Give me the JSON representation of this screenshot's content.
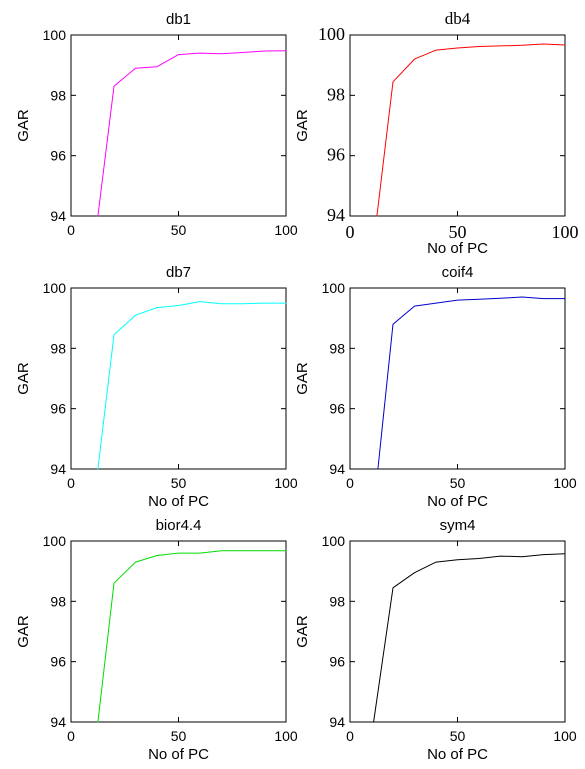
{
  "chart_data": [
    {
      "type": "line",
      "title": "db1",
      "xlabel": "",
      "ylabel": "GAR",
      "xlim": [
        0,
        100
      ],
      "ylim": [
        94,
        100
      ],
      "xticks": [
        "0",
        "50",
        "100"
      ],
      "yticks": [
        "94",
        "96",
        "98",
        "100"
      ],
      "color": "#ff00ff",
      "series": [
        {
          "x": [
            12.5,
            20,
            30,
            40,
            50,
            60,
            70,
            80,
            90,
            100
          ],
          "y": [
            94.0,
            98.3,
            98.9,
            98.95,
            99.35,
            99.4,
            99.38,
            99.42,
            99.47,
            99.48
          ]
        }
      ]
    },
    {
      "type": "line",
      "title": "db4",
      "xlabel": "No of PC",
      "ylabel": "GAR",
      "xlim": [
        0,
        100
      ],
      "ylim": [
        94,
        100
      ],
      "xticks": [
        "0",
        "50",
        "100"
      ],
      "yticks": [
        "94",
        "96",
        "98",
        "100"
      ],
      "color": "#ff0000",
      "series": [
        {
          "x": [
            12.5,
            20,
            30,
            40,
            50,
            60,
            70,
            80,
            90,
            100
          ],
          "y": [
            94.0,
            98.45,
            99.2,
            99.5,
            99.57,
            99.62,
            99.64,
            99.66,
            99.7,
            99.67
          ]
        }
      ]
    },
    {
      "type": "line",
      "title": "db7",
      "xlabel": "No of PC",
      "ylabel": "GAR",
      "xlim": [
        0,
        100
      ],
      "ylim": [
        94,
        100
      ],
      "xticks": [
        "0",
        "50",
        "100"
      ],
      "yticks": [
        "94",
        "96",
        "98",
        "100"
      ],
      "color": "#00ffff",
      "series": [
        {
          "x": [
            12.5,
            20,
            30,
            40,
            50,
            60,
            70,
            80,
            90,
            100
          ],
          "y": [
            94.0,
            98.45,
            99.1,
            99.35,
            99.42,
            99.55,
            99.48,
            99.48,
            99.5,
            99.5
          ]
        }
      ]
    },
    {
      "type": "line",
      "title": "coif4",
      "xlabel": "No of PC",
      "ylabel": "GAR",
      "xlim": [
        0,
        100
      ],
      "ylim": [
        94,
        100
      ],
      "xticks": [
        "0",
        "50",
        "100"
      ],
      "yticks": [
        "94",
        "96",
        "98",
        "100"
      ],
      "color": "#0000cc",
      "series": [
        {
          "x": [
            13,
            20,
            30,
            40,
            50,
            60,
            70,
            80,
            90,
            100
          ],
          "y": [
            94.0,
            98.8,
            99.4,
            99.5,
            99.6,
            99.63,
            99.66,
            99.7,
            99.65,
            99.65
          ]
        }
      ]
    },
    {
      "type": "line",
      "title": "bior4.4",
      "xlabel": "No of PC",
      "ylabel": "GAR",
      "xlim": [
        0,
        100
      ],
      "ylim": [
        94,
        100
      ],
      "xticks": [
        "0",
        "50",
        "100"
      ],
      "yticks": [
        "94",
        "96",
        "98",
        "100"
      ],
      "color": "#00dd00",
      "series": [
        {
          "x": [
            12.5,
            20,
            30,
            40,
            50,
            60,
            70,
            80,
            90,
            100
          ],
          "y": [
            94.0,
            98.6,
            99.3,
            99.52,
            99.6,
            99.6,
            99.68,
            99.68,
            99.68,
            99.68
          ]
        }
      ]
    },
    {
      "type": "line",
      "title": "sym4",
      "xlabel": "No of PC",
      "ylabel": "GAR",
      "xlim": [
        0,
        100
      ],
      "ylim": [
        94,
        100
      ],
      "xticks": [
        "0",
        "50",
        "100"
      ],
      "yticks": [
        "94",
        "96",
        "98",
        "100"
      ],
      "color": "#000000",
      "series": [
        {
          "x": [
            11,
            20,
            30,
            40,
            50,
            60,
            70,
            80,
            90,
            100
          ],
          "y": [
            94.0,
            98.45,
            98.95,
            99.3,
            99.38,
            99.42,
            99.5,
            99.48,
            99.55,
            99.58
          ]
        }
      ]
    }
  ]
}
